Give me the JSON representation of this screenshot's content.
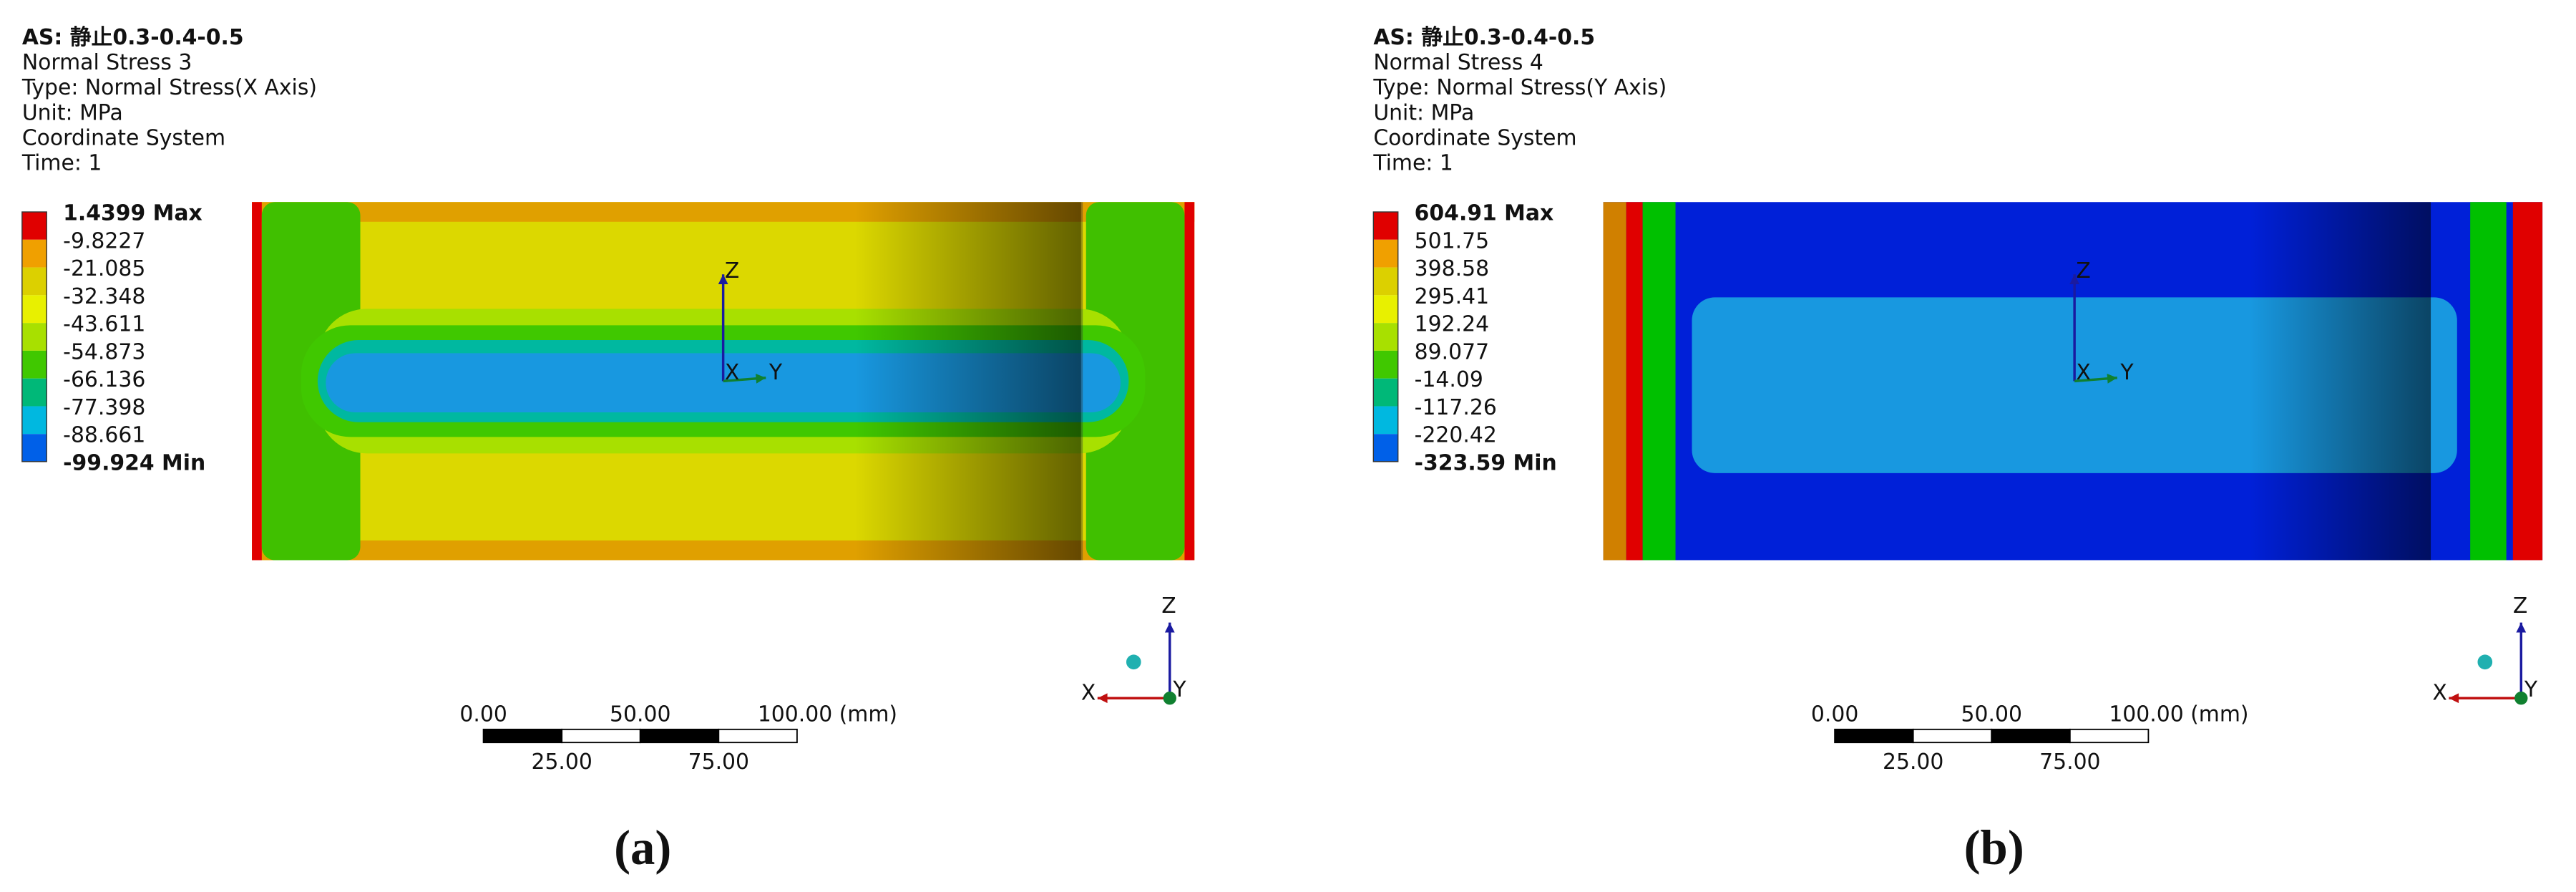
{
  "panels": [
    {
      "label": "(a)",
      "header": [
        "AS: 静止0.3-0.4-0.5",
        "Normal Stress 3",
        "Type: Normal Stress(X Axis)",
        "Unit: MPa",
        "Coordinate System",
        "Time: 1"
      ],
      "legend": [
        "1.4399 Max",
        "-9.8227",
        "-21.085",
        "-32.348",
        "-43.611",
        "-54.873",
        "-66.136",
        "-77.398",
        "-88.661",
        "-99.924 Min"
      ],
      "scale_bar": [
        "0.00",
        "25.00",
        "50.00",
        "75.00",
        "100.00 (mm)"
      ],
      "triad": [
        "X",
        "Y",
        "Z"
      ]
    },
    {
      "label": "(b)",
      "header": [
        "AS: 静止0.3-0.4-0.5",
        "Normal Stress 4",
        "Type: Normal Stress(Y Axis)",
        "Unit: MPa",
        "Coordinate System",
        "Time: 1"
      ],
      "legend": [
        "604.91 Max",
        "501.75",
        "398.58",
        "295.41",
        "192.24",
        "89.077",
        "-14.09",
        "-117.26",
        "-220.42",
        "-323.59 Min"
      ],
      "scale_bar": [
        "0.00",
        "25.00",
        "50.00",
        "75.00",
        "100.00 (mm)"
      ],
      "triad": [
        "X",
        "Y",
        "Z"
      ]
    }
  ]
}
